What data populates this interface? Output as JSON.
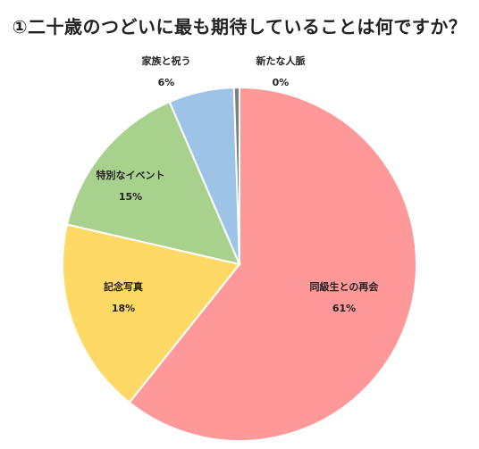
{
  "chart_data": {
    "type": "pie",
    "title": "①二十歳のつどいに最も期待していることは何ですか？",
    "slices": [
      {
        "label": "同級生との再会",
        "value": 61,
        "value_label": "61%",
        "color": "#ff9999"
      },
      {
        "label": "記念写真",
        "value": 18,
        "value_label": "18%",
        "color": "#ffd966"
      },
      {
        "label": "特別なイベント",
        "value": 15,
        "value_label": "15%",
        "color": "#a9d18e"
      },
      {
        "label": "家族と祝う",
        "value": 6,
        "value_label": "6%",
        "color": "#9dc3e6"
      },
      {
        "label": "新たな人脈",
        "value": 0.5,
        "value_label": "0%",
        "color": "#7f7f7f"
      }
    ],
    "direction": "clockwise",
    "start": "12 o'clock"
  }
}
